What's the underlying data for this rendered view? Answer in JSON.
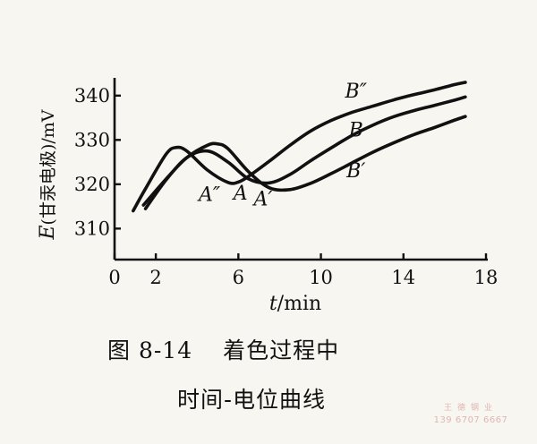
{
  "chart_data": {
    "type": "line",
    "xlabel": "t/min",
    "ylabel": "E(甘汞电极)/mV",
    "xlim": [
      0,
      18
    ],
    "ylim": [
      303,
      344
    ],
    "xticks": [
      0,
      2,
      6,
      10,
      14,
      18
    ],
    "yticks": [
      310,
      320,
      330,
      340
    ],
    "grid": false,
    "series": [
      {
        "name": "A",
        "x": [
          1.5,
          2.5,
          3.5,
          4.5,
          5.5,
          6.5,
          7.5,
          8.5,
          9.5,
          10.5,
          11.5,
          12.5,
          13.5,
          14.5,
          15.5,
          16.5,
          17.0
        ],
        "y": [
          314.5,
          321.0,
          326.0,
          327.5,
          325.0,
          321.2,
          320.3,
          322.2,
          325.3,
          328.2,
          331.0,
          333.3,
          335.2,
          336.6,
          337.8,
          339.0,
          339.7
        ]
      },
      {
        "name": "A'",
        "x": [
          1.4,
          2.5,
          3.5,
          4.5,
          5.0,
          5.5,
          6.5,
          7.5,
          8.5,
          9.5,
          10.5,
          11.5,
          12.5,
          13.5,
          14.5,
          15.5,
          16.5,
          17.0
        ],
        "y": [
          315.3,
          321.2,
          326.0,
          328.8,
          329.1,
          328.0,
          322.8,
          319.2,
          318.8,
          320.2,
          322.4,
          324.8,
          327.2,
          329.3,
          331.2,
          332.8,
          334.5,
          335.3
        ]
      },
      {
        "name": "A''",
        "x": [
          0.9,
          1.5,
          2.5,
          3.0,
          3.5,
          4.5,
          5.5,
          6.0,
          6.5,
          7.5,
          8.5,
          9.5,
          10.5,
          11.5,
          12.5,
          13.5,
          14.5,
          15.5,
          16.5,
          17.0
        ],
        "y": [
          314.0,
          319.0,
          326.8,
          328.3,
          327.5,
          323.2,
          320.4,
          320.5,
          321.8,
          325.2,
          328.8,
          332.0,
          334.4,
          336.2,
          337.6,
          339.0,
          340.2,
          341.3,
          342.5,
          343.0
        ]
      }
    ],
    "annotations": [
      {
        "text": "A''",
        "x": 4.6,
        "y": 316.2
      },
      {
        "text": "A",
        "x": 6.1,
        "y": 316.5
      },
      {
        "text": "A'",
        "x": 7.2,
        "y": 315.2
      },
      {
        "text": "B''",
        "x": 11.7,
        "y": 339.6
      },
      {
        "text": "B",
        "x": 11.7,
        "y": 330.8
      },
      {
        "text": "B'",
        "x": 11.7,
        "y": 321.6
      }
    ]
  },
  "labels": {
    "x_variable": "t",
    "x_unit": "/min",
    "y_variable": "E",
    "y_rest": "(甘汞电极)/mV"
  },
  "caption": {
    "line1_number": "图 8-14",
    "line1_title": "着色过程中",
    "line2": "时间-电位曲线"
  },
  "watermark": {
    "name": "王德钢业",
    "phone": "139 6707 6667"
  }
}
